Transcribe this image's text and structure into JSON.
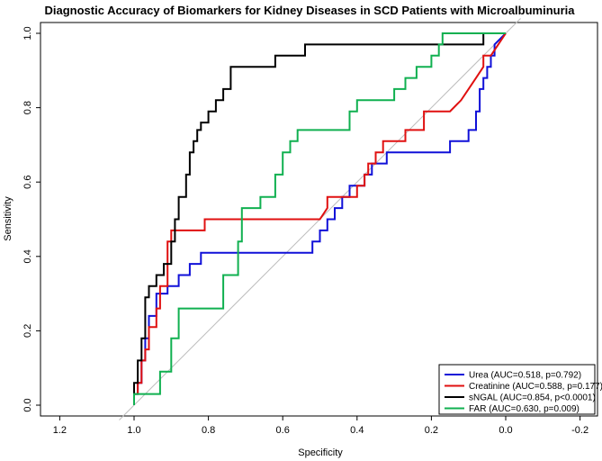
{
  "chart_data": {
    "type": "line",
    "title": "Diagnostic Accuracy of Biomarkers for Kidney Diseases in SCD Patients with Microalbuminuria",
    "xlabel": "Specificity",
    "ylabel": "Sensitivity",
    "xlim": [
      1.2,
      -0.2
    ],
    "ylim": [
      0.0,
      1.0
    ],
    "x_reversed": true,
    "xticks": [
      1.2,
      1.0,
      0.8,
      0.6,
      0.4,
      0.2,
      0.0,
      -0.2
    ],
    "xtick_labels": [
      "1.2",
      "1.0",
      "0.8",
      "0.6",
      "0.4",
      "0.2",
      "0.0",
      "-0.2"
    ],
    "yticks": [
      0.0,
      0.2,
      0.4,
      0.6,
      0.8,
      1.0
    ],
    "ytick_labels": [
      "0.0",
      "0.2",
      "0.4",
      "0.6",
      "0.8",
      "1.0"
    ],
    "reference_line": {
      "from": [
        1.0,
        0.0
      ],
      "to": [
        0.0,
        1.0
      ],
      "color": "#bdbdbd"
    },
    "legend_position": "bottom-right",
    "series": [
      {
        "name": "Urea (AUC=0.518, p=0.792)",
        "color": "#1010d8",
        "x": [
          1.0,
          1.0,
          0.99,
          0.99,
          0.98,
          0.98,
          0.97,
          0.97,
          0.96,
          0.96,
          0.94,
          0.94,
          0.91,
          0.91,
          0.88,
          0.88,
          0.85,
          0.85,
          0.82,
          0.82,
          0.8,
          0.8,
          0.71,
          0.71,
          0.52,
          0.52,
          0.5,
          0.5,
          0.48,
          0.48,
          0.46,
          0.46,
          0.44,
          0.44,
          0.42,
          0.42,
          0.4,
          0.4,
          0.38,
          0.38,
          0.36,
          0.36,
          0.34,
          0.34,
          0.32,
          0.32,
          0.3,
          0.3,
          0.28,
          0.28,
          0.15,
          0.15,
          0.1,
          0.1,
          0.08,
          0.08,
          0.07,
          0.07,
          0.06,
          0.06,
          0.05,
          0.05,
          0.04,
          0.04,
          0.03,
          0.03,
          0.0
        ],
        "y": [
          0.0,
          0.03,
          0.03,
          0.06,
          0.06,
          0.12,
          0.12,
          0.18,
          0.18,
          0.24,
          0.24,
          0.3,
          0.3,
          0.32,
          0.32,
          0.35,
          0.35,
          0.38,
          0.38,
          0.41,
          0.41,
          0.41,
          0.41,
          0.41,
          0.41,
          0.44,
          0.44,
          0.47,
          0.47,
          0.5,
          0.5,
          0.53,
          0.53,
          0.56,
          0.56,
          0.59,
          0.59,
          0.59,
          0.59,
          0.62,
          0.62,
          0.65,
          0.65,
          0.65,
          0.65,
          0.68,
          0.68,
          0.68,
          0.68,
          0.68,
          0.68,
          0.71,
          0.71,
          0.74,
          0.74,
          0.79,
          0.79,
          0.85,
          0.85,
          0.88,
          0.88,
          0.91,
          0.91,
          0.94,
          0.94,
          0.97,
          1.0
        ]
      },
      {
        "name": "Creatinine (AUC=0.588, p=0.177)",
        "color": "#e01010",
        "x": [
          1.0,
          1.0,
          0.99,
          0.99,
          0.98,
          0.98,
          0.97,
          0.97,
          0.96,
          0.96,
          0.94,
          0.94,
          0.93,
          0.93,
          0.91,
          0.91,
          0.9,
          0.9,
          0.89,
          0.89,
          0.81,
          0.81,
          0.5,
          0.48,
          0.48,
          0.42,
          0.4,
          0.4,
          0.38,
          0.38,
          0.37,
          0.37,
          0.35,
          0.35,
          0.33,
          0.33,
          0.3,
          0.3,
          0.27,
          0.27,
          0.22,
          0.22,
          0.15,
          0.12,
          0.1,
          0.08,
          0.06,
          0.06,
          0.04,
          0.02,
          0.0
        ],
        "y": [
          0.0,
          0.03,
          0.03,
          0.06,
          0.06,
          0.12,
          0.12,
          0.15,
          0.15,
          0.21,
          0.21,
          0.26,
          0.26,
          0.32,
          0.32,
          0.44,
          0.44,
          0.47,
          0.47,
          0.47,
          0.47,
          0.5,
          0.5,
          0.53,
          0.56,
          0.56,
          0.56,
          0.59,
          0.59,
          0.62,
          0.62,
          0.65,
          0.65,
          0.68,
          0.68,
          0.71,
          0.71,
          0.71,
          0.71,
          0.74,
          0.74,
          0.79,
          0.79,
          0.82,
          0.85,
          0.88,
          0.91,
          0.94,
          0.94,
          0.97,
          1.0
        ]
      },
      {
        "name": "sNGAL (AUC=0.854, p<0.0001)",
        "color": "#000000",
        "x": [
          1.0,
          1.0,
          0.99,
          0.99,
          0.98,
          0.98,
          0.97,
          0.97,
          0.96,
          0.96,
          0.94,
          0.94,
          0.92,
          0.92,
          0.9,
          0.9,
          0.89,
          0.89,
          0.88,
          0.88,
          0.86,
          0.86,
          0.85,
          0.85,
          0.84,
          0.84,
          0.83,
          0.83,
          0.82,
          0.82,
          0.81,
          0.81,
          0.8,
          0.8,
          0.78,
          0.78,
          0.76,
          0.76,
          0.74,
          0.74,
          0.65,
          0.65,
          0.62,
          0.62,
          0.54,
          0.54,
          0.06,
          0.06,
          0.0
        ],
        "y": [
          0.0,
          0.06,
          0.06,
          0.12,
          0.12,
          0.18,
          0.18,
          0.29,
          0.29,
          0.32,
          0.32,
          0.35,
          0.35,
          0.38,
          0.38,
          0.44,
          0.44,
          0.5,
          0.5,
          0.56,
          0.56,
          0.62,
          0.62,
          0.68,
          0.68,
          0.71,
          0.71,
          0.74,
          0.74,
          0.76,
          0.76,
          0.76,
          0.76,
          0.79,
          0.79,
          0.82,
          0.82,
          0.85,
          0.85,
          0.91,
          0.91,
          0.91,
          0.91,
          0.94,
          0.94,
          0.97,
          0.97,
          1.0,
          1.0
        ]
      },
      {
        "name": "FAR (AUC=0.630, p=0.009)",
        "color": "#10b050",
        "x": [
          1.0,
          1.0,
          0.99,
          0.99,
          0.93,
          0.93,
          0.9,
          0.9,
          0.88,
          0.88,
          0.76,
          0.76,
          0.72,
          0.72,
          0.71,
          0.71,
          0.66,
          0.66,
          0.62,
          0.62,
          0.6,
          0.6,
          0.58,
          0.58,
          0.56,
          0.56,
          0.55,
          0.55,
          0.42,
          0.42,
          0.4,
          0.4,
          0.3,
          0.3,
          0.27,
          0.27,
          0.24,
          0.24,
          0.2,
          0.2,
          0.18,
          0.18,
          0.17,
          0.17,
          0.06,
          0.06,
          0.0
        ],
        "y": [
          0.0,
          0.03,
          0.03,
          0.03,
          0.03,
          0.09,
          0.09,
          0.18,
          0.18,
          0.26,
          0.26,
          0.35,
          0.35,
          0.44,
          0.44,
          0.53,
          0.53,
          0.56,
          0.56,
          0.62,
          0.62,
          0.68,
          0.68,
          0.71,
          0.71,
          0.74,
          0.74,
          0.74,
          0.74,
          0.79,
          0.79,
          0.82,
          0.82,
          0.85,
          0.85,
          0.88,
          0.88,
          0.91,
          0.91,
          0.94,
          0.94,
          0.97,
          0.97,
          1.0,
          1.0,
          1.0,
          1.0
        ]
      }
    ]
  }
}
